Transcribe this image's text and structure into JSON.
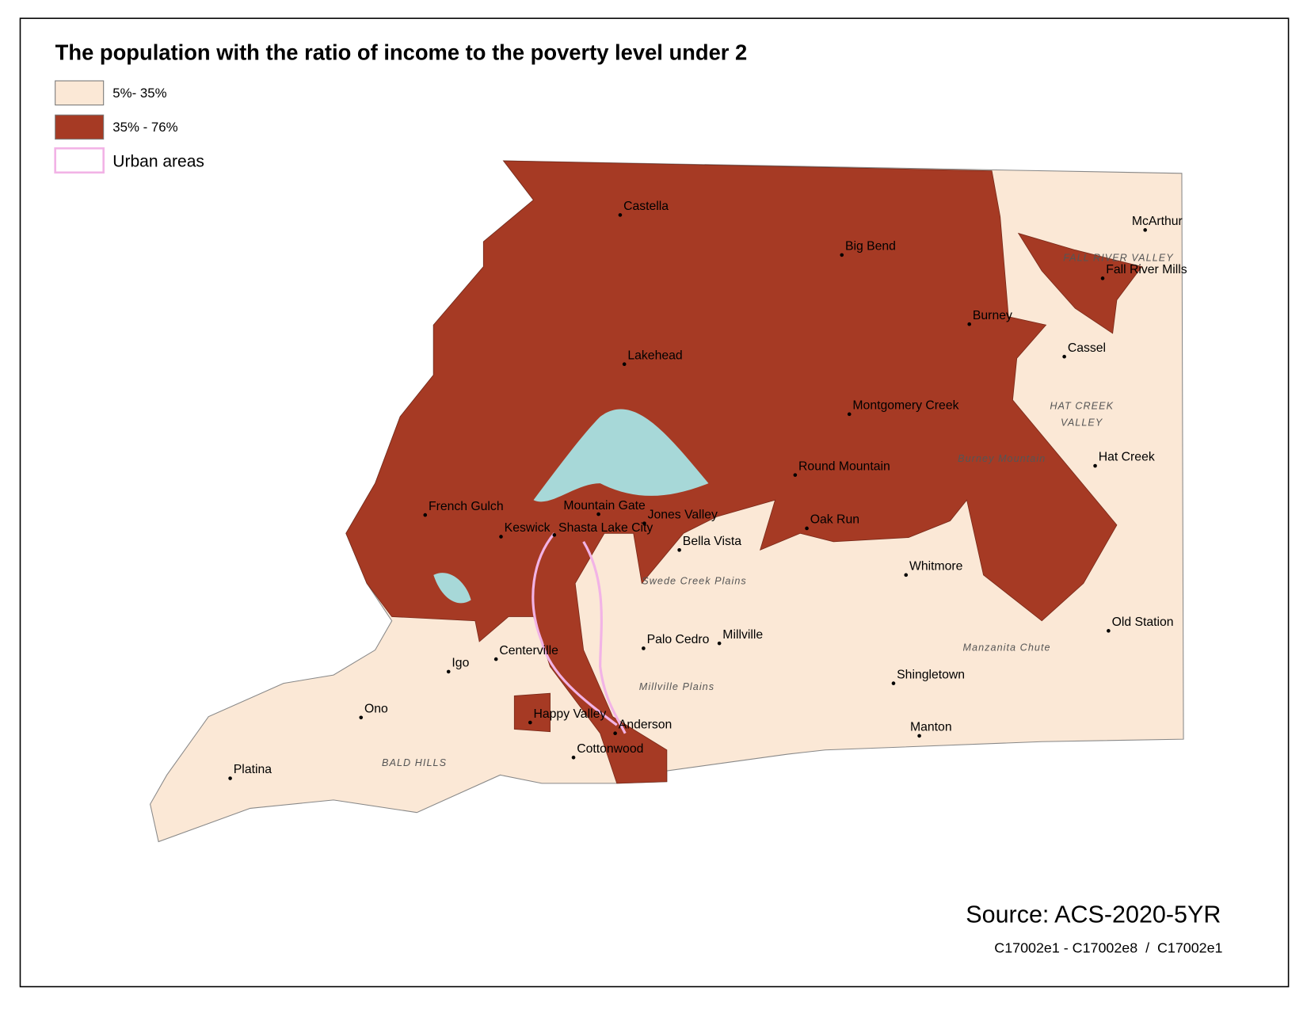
{
  "title": "The population with the ratio of income to the poverty level under 2",
  "legend": [
    {
      "label": "5%- 35%",
      "color": "#fbe8d6"
    },
    {
      "label": "35% - 76%",
      "color": "#a63a24"
    },
    {
      "label": "Urban areas",
      "color": "#f2b3e6"
    }
  ],
  "places": [
    "Castella",
    "Big Bend",
    "McArthur",
    "Fall River Mills",
    "Burney",
    "Cassel",
    "Lakehead",
    "Montgomery Creek",
    "Hat Creek",
    "Round Mountain",
    "French Gulch",
    "Mountain Gate",
    "Jones Valley",
    "Keswick",
    "Shasta Lake City",
    "Oak Run",
    "Bella Vista",
    "Whitmore",
    "Old Station",
    "Palo Cedro",
    "Millville",
    "Centerville",
    "Igo",
    "Shingletown",
    "Ono",
    "Happy Valley",
    "Anderson",
    "Manton",
    "Cottonwood",
    "Platina"
  ],
  "regions": [
    "FALL RIVER VALLEY",
    "HAT CREEK",
    "VALLEY",
    "BALD HILLS",
    "Swede Creek Plains",
    "Manzanita Chute",
    "Millville Plains",
    "Burney Mountain"
  ],
  "source": "Source: ACS-2020-5YR",
  "formula": "C17002e1 - C17002e8  /  C17002e1"
}
